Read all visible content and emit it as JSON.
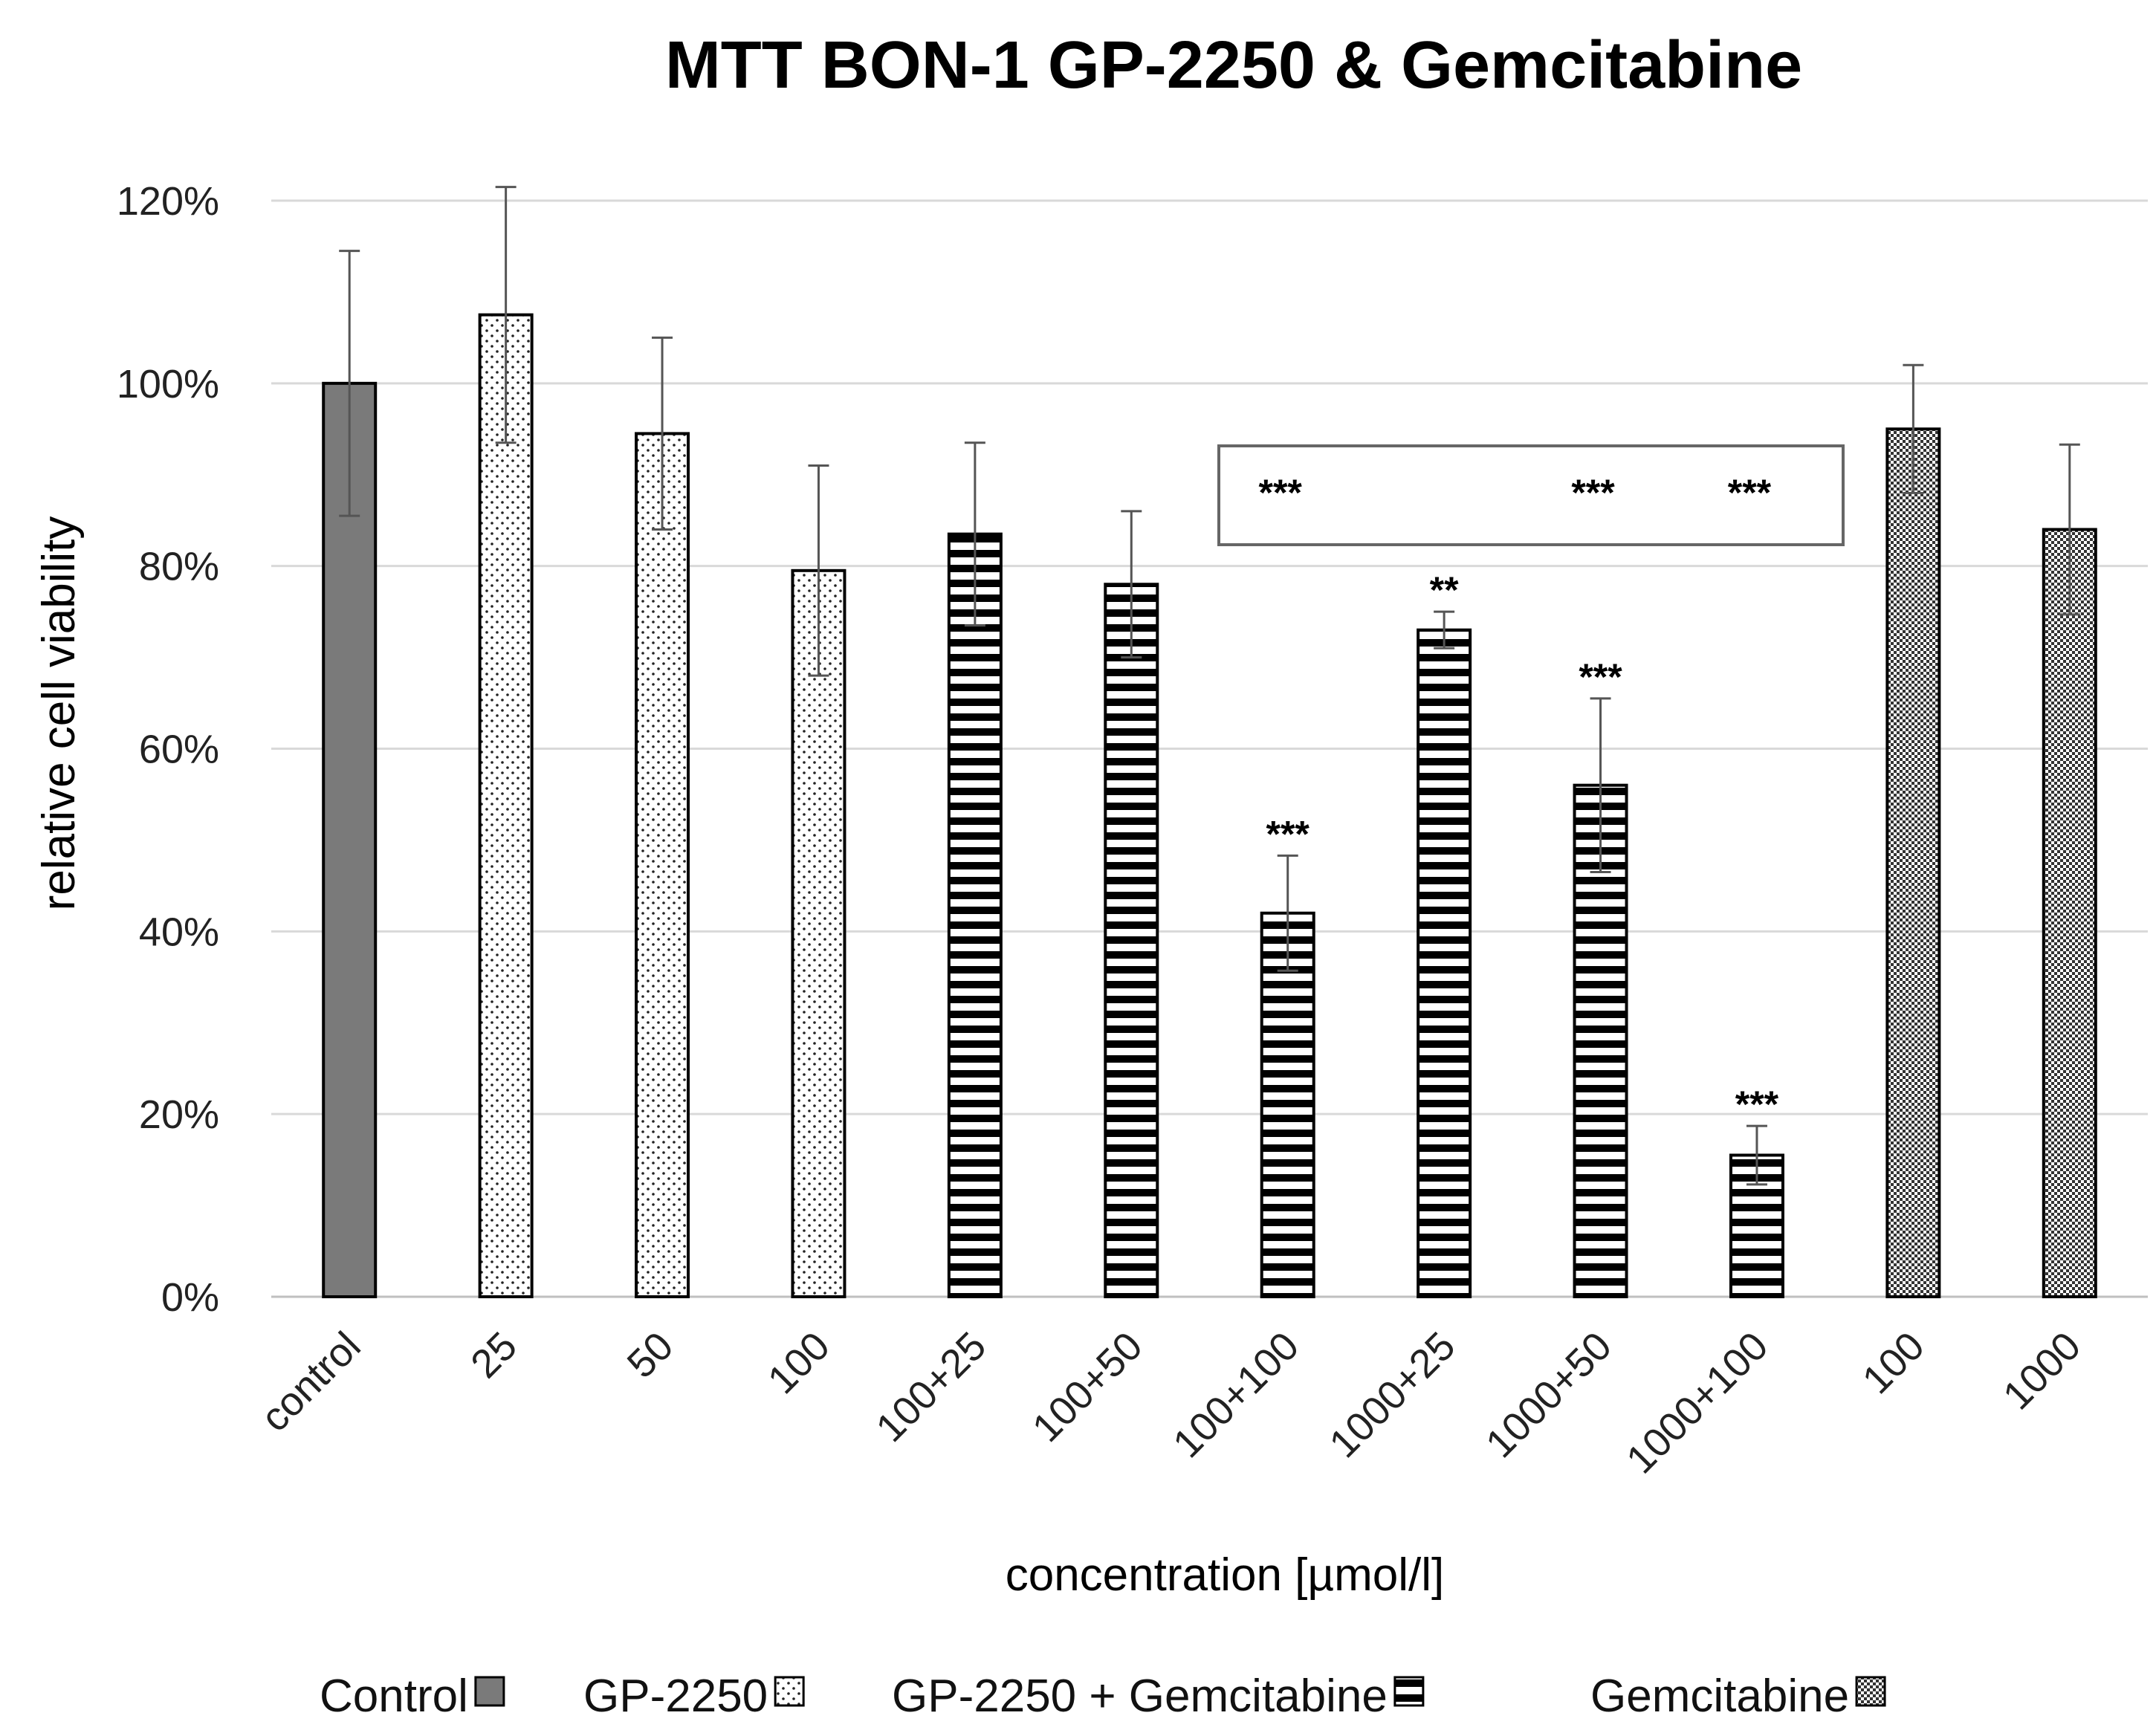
{
  "chart_data": {
    "type": "bar",
    "title": "MTT BON-1 GP-2250 & Gemcitabine",
    "xlabel": "concentration [µmol/l]",
    "ylabel": "relative cell viability",
    "ylim": [
      0,
      1.2
    ],
    "yticks": [
      "0%",
      "20%",
      "40%",
      "60%",
      "80%",
      "100%",
      "120%"
    ],
    "grid": true,
    "categories": [
      "control",
      "25",
      "50",
      "100",
      "100+25",
      "100+50",
      "100+100",
      "1000+25",
      "1000+50",
      "1000+100",
      "100",
      "1000"
    ],
    "groups": [
      "control",
      "gp",
      "gp",
      "gp",
      "combo",
      "combo",
      "combo",
      "combo",
      "combo",
      "combo",
      "gem",
      "gem"
    ],
    "values": [
      1.0,
      1.075,
      0.945,
      0.795,
      0.835,
      0.78,
      0.42,
      0.73,
      0.56,
      0.155,
      0.95,
      0.84
    ],
    "errors": [
      0.145,
      0.14,
      0.105,
      0.115,
      0.1,
      0.08,
      0.063,
      0.02,
      0.095,
      0.032,
      0.07,
      0.093
    ],
    "significance": [
      "",
      "",
      "",
      "",
      "",
      "",
      "***",
      "**",
      "***",
      "***",
      "",
      ""
    ],
    "bracket_significance": [
      {
        "over_category_index": 6,
        "label": "***"
      },
      {
        "over_category_index": 8,
        "label": "***"
      },
      {
        "over_category_index": 9,
        "label": "***"
      }
    ],
    "legend": [
      {
        "label": "Control",
        "group": "control"
      },
      {
        "label": "GP-2250",
        "group": "gp"
      },
      {
        "label": "GP-2250 + Gemcitabine",
        "group": "combo"
      },
      {
        "label": "Gemcitabine",
        "group": "gem"
      }
    ],
    "legend_position": "bottom",
    "colors": {
      "control": "#7a7a7a",
      "grid": "#d9d9d9",
      "error": "#555555",
      "bar_edge": "#000000"
    }
  }
}
